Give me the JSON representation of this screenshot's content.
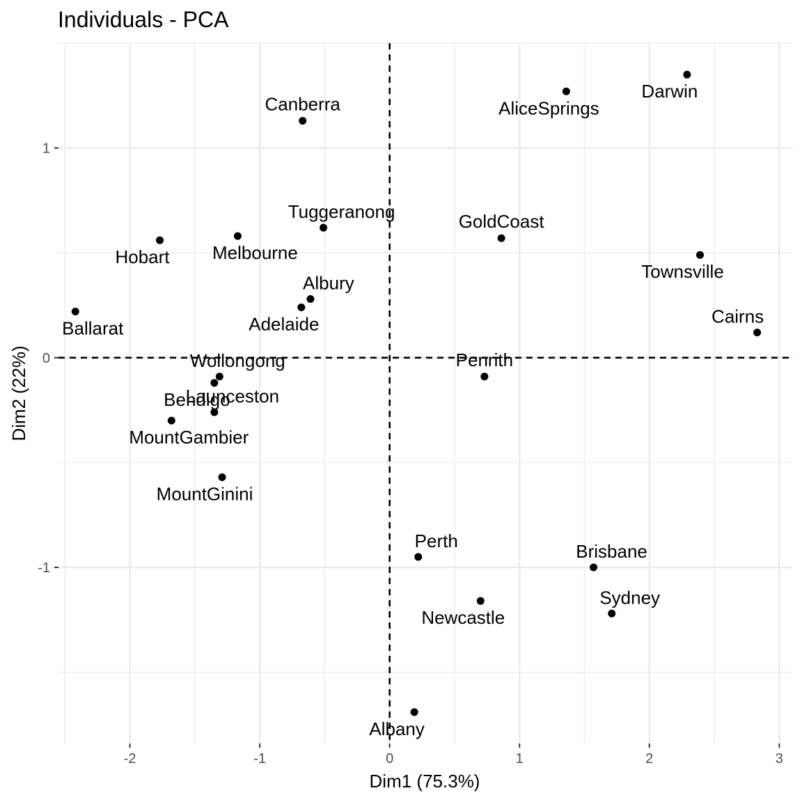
{
  "chart_data": {
    "type": "scatter",
    "title": "Individuals - PCA",
    "xlabel": "Dim1 (75.3%)",
    "ylabel": "Dim2 (22%)",
    "xlim": [
      -2.55,
      3.1
    ],
    "ylim": [
      -1.84,
      1.5
    ],
    "xticks": [
      -2,
      -1,
      0,
      1,
      2,
      3
    ],
    "yticks": [
      -1,
      0,
      1
    ],
    "grid": true,
    "reference_lines": {
      "x": 0,
      "y": 0,
      "style": "dashed"
    },
    "points": [
      {
        "name": "Darwin",
        "x": 2.29,
        "y": 1.35,
        "label_pos": "below-left"
      },
      {
        "name": "AliceSprings",
        "x": 1.36,
        "y": 1.27,
        "label_pos": "below-left"
      },
      {
        "name": "Canberra",
        "x": -0.67,
        "y": 1.13,
        "label_pos": "above"
      },
      {
        "name": "Tuggeranong",
        "x": -0.51,
        "y": 0.62,
        "label_pos": "above-right"
      },
      {
        "name": "GoldCoast",
        "x": 0.86,
        "y": 0.57,
        "label_pos": "above"
      },
      {
        "name": "Hobart",
        "x": -1.77,
        "y": 0.56,
        "label_pos": "below-left"
      },
      {
        "name": "Melbourne",
        "x": -1.17,
        "y": 0.58,
        "label_pos": "below-right"
      },
      {
        "name": "Townsville",
        "x": 2.39,
        "y": 0.49,
        "label_pos": "below-left"
      },
      {
        "name": "Albury",
        "x": -0.61,
        "y": 0.28,
        "label_pos": "above-right"
      },
      {
        "name": "Adelaide",
        "x": -0.68,
        "y": 0.24,
        "label_pos": "below-left"
      },
      {
        "name": "Ballarat",
        "x": -2.42,
        "y": 0.22,
        "label_pos": "below-right"
      },
      {
        "name": "Cairns",
        "x": 2.83,
        "y": 0.12,
        "label_pos": "above-left"
      },
      {
        "name": "Penrith",
        "x": 0.73,
        "y": -0.09,
        "label_pos": "above"
      },
      {
        "name": "Wollongong",
        "x": -1.31,
        "y": -0.09,
        "label_pos": "above-right"
      },
      {
        "name": "Bendigo",
        "x": -1.35,
        "y": -0.12,
        "label_pos": "below-left"
      },
      {
        "name": "Launceston",
        "x": -1.35,
        "y": -0.26,
        "label_pos": "above-right"
      },
      {
        "name": "MountGambier",
        "x": -1.68,
        "y": -0.3,
        "label_pos": "below-right"
      },
      {
        "name": "MountGinini",
        "x": -1.29,
        "y": -0.57,
        "label_pos": "below-left"
      },
      {
        "name": "Perth",
        "x": 0.22,
        "y": -0.95,
        "label_pos": "above-right"
      },
      {
        "name": "Brisbane",
        "x": 1.57,
        "y": -1.0,
        "label_pos": "above-right"
      },
      {
        "name": "Newcastle",
        "x": 0.7,
        "y": -1.16,
        "label_pos": "below-left"
      },
      {
        "name": "Sydney",
        "x": 1.71,
        "y": -1.22,
        "label_pos": "above-right"
      },
      {
        "name": "Albany",
        "x": 0.19,
        "y": -1.69,
        "label_pos": "below-left"
      }
    ]
  }
}
